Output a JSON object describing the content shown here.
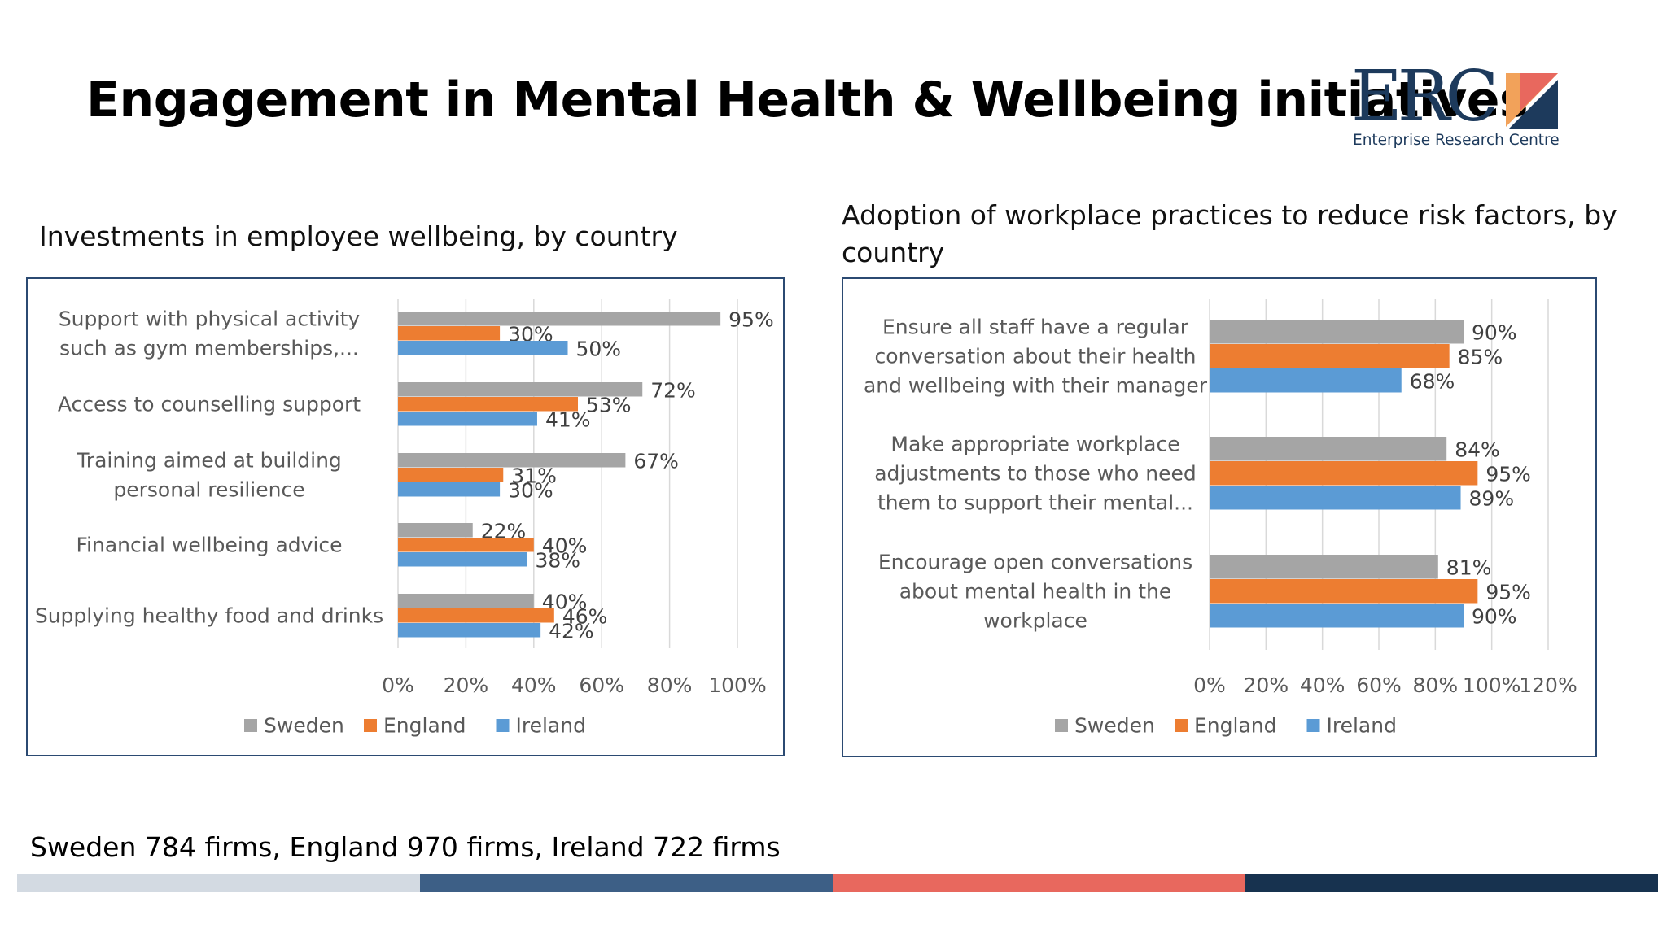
{
  "page": {
    "title": "Engagement in Mental Health & Wellbeing initiatives",
    "footnote": "Sweden 784 firms, England 970 firms, Ireland 722 firms"
  },
  "logo": {
    "wordmark": "ERC",
    "tagline": "Enterprise Research Centre",
    "colors": {
      "navy": "#1d3a5c",
      "coral": "#e8685e",
      "orange": "#f2a25a"
    }
  },
  "bottom_bands": {
    "colors": [
      "#d3dae2",
      "#3d5f86",
      "#e8685e",
      "#17324f"
    ]
  },
  "series_colors": {
    "Sweden": "#a5a5a5",
    "England": "#ed7d31",
    "Ireland": "#5b9bd5"
  },
  "chart_data": [
    {
      "type": "bar",
      "orientation": "horizontal",
      "title": "Investments in employee wellbeing, by country",
      "categories": [
        [
          "Support with physical activity",
          "such as gym memberships,..."
        ],
        [
          "Access to counselling support"
        ],
        [
          "Training aimed at building",
          "personal resilience"
        ],
        [
          "Financial wellbeing advice"
        ],
        [
          "Supplying healthy food and drinks"
        ]
      ],
      "series": [
        {
          "name": "Sweden",
          "values": [
            95,
            72,
            67,
            22,
            40
          ]
        },
        {
          "name": "England",
          "values": [
            30,
            53,
            31,
            40,
            46
          ]
        },
        {
          "name": "Ireland",
          "values": [
            50,
            41,
            30,
            38,
            42
          ]
        }
      ],
      "xlim": [
        0,
        100
      ],
      "xticks": [
        "0%",
        "20%",
        "40%",
        "60%",
        "80%",
        "100%"
      ],
      "value_suffix": "%",
      "grid": "vertical",
      "legend": "bottom"
    },
    {
      "type": "bar",
      "orientation": "horizontal",
      "title": "Adoption of workplace practices to reduce risk factors, by country",
      "categories": [
        [
          "Ensure all staff have a regular",
          "conversation about their health",
          "and wellbeing with their manager"
        ],
        [
          "Make appropriate workplace",
          "adjustments to those who need",
          "them to support their mental..."
        ],
        [
          "Encourage open conversations",
          "about mental health in the",
          "workplace"
        ]
      ],
      "series": [
        {
          "name": "Sweden",
          "values": [
            90,
            84,
            81
          ]
        },
        {
          "name": "England",
          "values": [
            85,
            95,
            95
          ]
        },
        {
          "name": "Ireland",
          "values": [
            68,
            89,
            90
          ]
        }
      ],
      "xlim": [
        0,
        120
      ],
      "xticks": [
        "0%",
        "20%",
        "40%",
        "60%",
        "80%",
        "100%",
        "120%"
      ],
      "value_suffix": "%",
      "grid": "vertical",
      "legend": "bottom"
    }
  ]
}
